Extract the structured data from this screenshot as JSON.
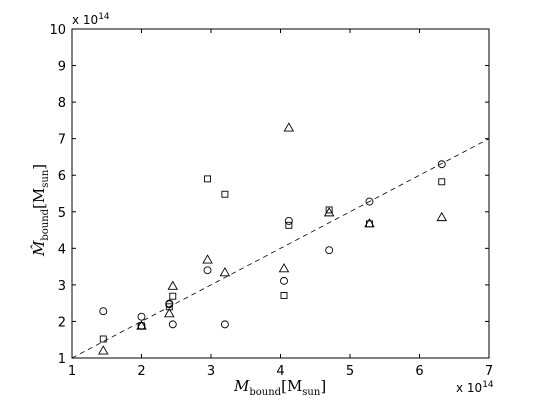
{
  "chart_data": {
    "type": "scatter",
    "title": "",
    "xlabel": {
      "main": "M",
      "sub": "bound",
      "unit_main": "M",
      "unit_sub": "sun"
    },
    "ylabel": {
      "main": "M̂",
      "sub": "bound",
      "unit_main": "M",
      "unit_sub": "sun"
    },
    "x_multiplier": {
      "base": "x 10",
      "exp": "14"
    },
    "y_multiplier": {
      "base": "x 10",
      "exp": "14"
    },
    "xlim": [
      1,
      7
    ],
    "ylim": [
      1,
      10
    ],
    "xticks": [
      1,
      2,
      3,
      4,
      5,
      6,
      7
    ],
    "yticks": [
      1,
      2,
      3,
      4,
      5,
      6,
      7,
      8,
      9,
      10
    ],
    "grid": false,
    "reference_line": {
      "style": "dashed",
      "x": [
        1,
        7
      ],
      "y": [
        1,
        7
      ]
    },
    "series": [
      {
        "marker": "circle",
        "x": [
          1.45,
          2.0,
          2.0,
          2.4,
          2.4,
          2.45,
          2.95,
          3.2,
          4.05,
          4.12,
          4.7,
          5.28,
          6.32
        ],
        "y": [
          2.28,
          2.13,
          1.88,
          2.49,
          2.47,
          1.92,
          3.4,
          1.92,
          3.11,
          4.75,
          3.95,
          5.28,
          6.3
        ]
      },
      {
        "marker": "square",
        "x": [
          1.45,
          2.0,
          2.4,
          2.45,
          2.95,
          3.2,
          4.05,
          4.12,
          4.7,
          5.28,
          6.32
        ],
        "y": [
          1.52,
          1.88,
          2.4,
          2.69,
          5.9,
          5.48,
          2.71,
          4.63,
          5.05,
          4.67,
          5.82
        ]
      },
      {
        "marker": "triangle",
        "x": [
          1.45,
          2.0,
          2.4,
          2.45,
          2.95,
          3.2,
          4.05,
          4.12,
          4.7,
          5.28,
          6.32
        ],
        "y": [
          1.2,
          1.88,
          2.22,
          2.97,
          3.69,
          3.34,
          3.45,
          7.3,
          4.98,
          4.68,
          4.85
        ]
      }
    ]
  }
}
